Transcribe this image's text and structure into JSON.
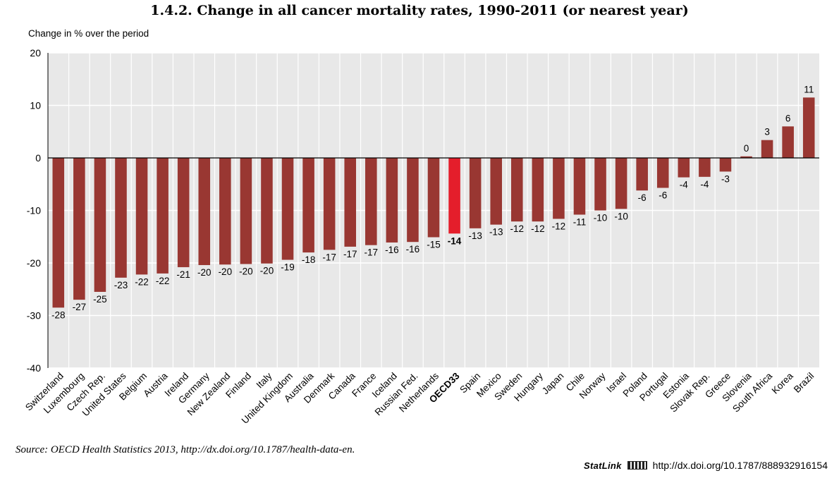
{
  "chart_data": {
    "type": "bar",
    "title": "1.4.2.  Change in all cancer mortality rates, 1990-2011 (or nearest year)",
    "ylabel": "Change in % over the period",
    "xlabel": "",
    "ylim": [
      -40,
      20
    ],
    "yticks": [
      -40,
      -30,
      -20,
      -10,
      0,
      10,
      20
    ],
    "grid": true,
    "categories": [
      "Switzerland",
      "Luxembourg",
      "Czech Rep.",
      "United States",
      "Belgium",
      "Austria",
      "Ireland",
      "Germany",
      "New Zealand",
      "Finland",
      "Italy",
      "United Kingdom",
      "Australia",
      "Denmark",
      "Canada",
      "France",
      "Iceland",
      "Russian Fed.",
      "Netherlands",
      "OECD33",
      "Spain",
      "Mexico",
      "Sweden",
      "Hungary",
      "Japan",
      "Chile",
      "Norway",
      "Israel",
      "Poland",
      "Portugal",
      "Estonia",
      "Slovak Rep.",
      "Greece",
      "Slovenia",
      "South Africa",
      "Korea",
      "Brazil"
    ],
    "values": [
      -28.5,
      -27,
      -25.5,
      -22.8,
      -22.2,
      -22,
      -20.8,
      -20.4,
      -20.3,
      -20.2,
      -20.1,
      -19.4,
      -18,
      -17.5,
      -16.9,
      -16.6,
      -16.1,
      -16,
      -15.1,
      -14.4,
      -13.4,
      -12.7,
      -12.1,
      -12.1,
      -11.6,
      -10.8,
      -10,
      -9.7,
      -6.2,
      -5.7,
      -3.7,
      -3.6,
      -2.6,
      0.3,
      3.4,
      6,
      11.5
    ],
    "data_labels": [
      "-28",
      "-27",
      "-25",
      "-23",
      "-22",
      "-22",
      "-21",
      "-20",
      "-20",
      "-20",
      "-20",
      "-19",
      "-18",
      "-17",
      "-17",
      "-17",
      "-16",
      "-16",
      "-15",
      "-14",
      "-13",
      "-13",
      "-12",
      "-12",
      "-12",
      "-11",
      "-10",
      "-10",
      "-6",
      "-6",
      "-4",
      "-4",
      "-3",
      "0",
      "3",
      "6",
      "11"
    ],
    "highlight": "OECD33",
    "colors": {
      "bar": "#993732",
      "highlight": "#e41e2b",
      "plot_bg": "#e8e8e8",
      "grid": "#ffffff"
    }
  },
  "footer": {
    "source": "Source:  OECD Health Statistics 2013, http://dx.doi.org/10.1787/health-data-en.",
    "statlink_brand": "StatLink",
    "statlink_url": "http://dx.doi.org/10.1787/888932916154"
  }
}
